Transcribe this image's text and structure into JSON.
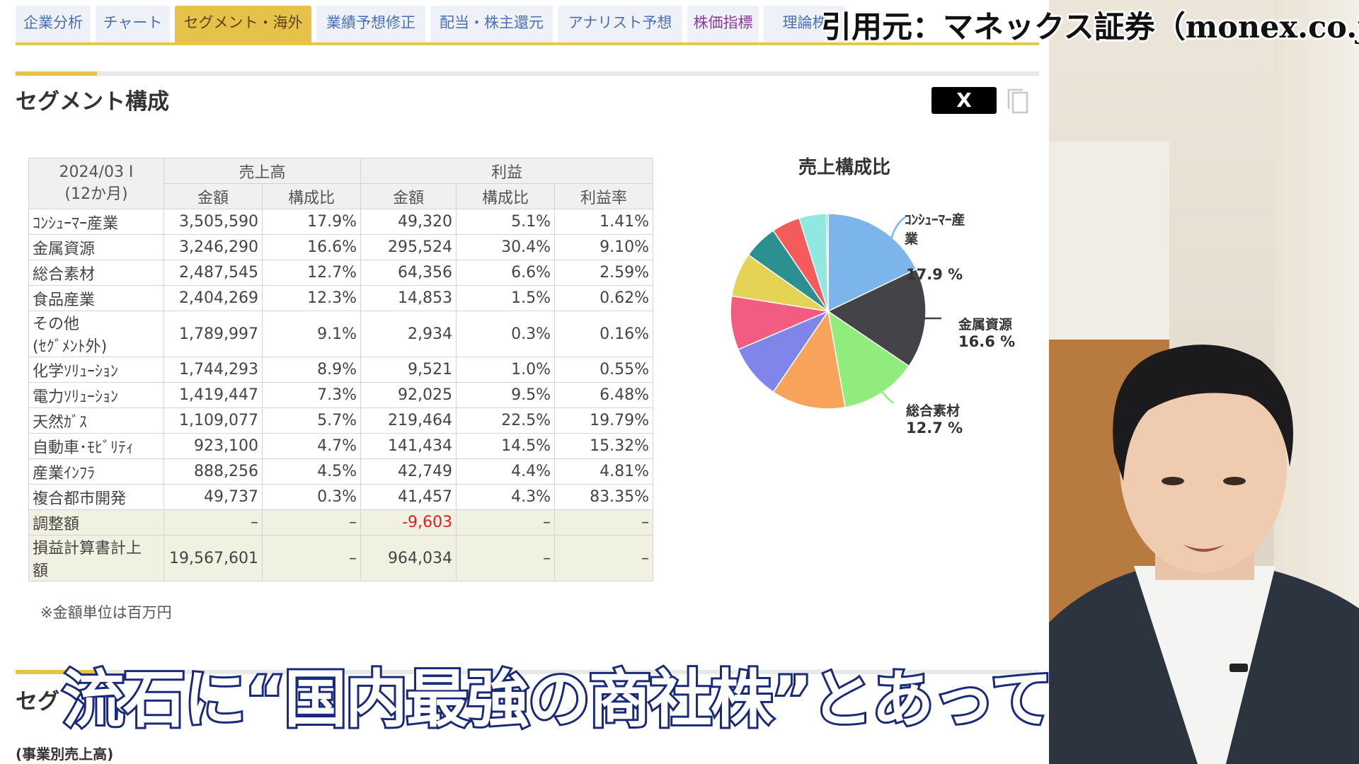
{
  "tabs": [
    {
      "label": "企業分析",
      "active": false,
      "style": "normal"
    },
    {
      "label": "チャート",
      "active": false,
      "style": "normal"
    },
    {
      "label": "セグメント・海外",
      "active": true,
      "style": "normal"
    },
    {
      "label": "業績予想修正",
      "active": false,
      "style": "normal"
    },
    {
      "label": "配当・株主還元",
      "active": false,
      "style": "normal"
    },
    {
      "label": "アナリスト予想",
      "active": false,
      "style": "normal"
    },
    {
      "label": "株価指標",
      "active": false,
      "style": "purple"
    },
    {
      "label": "理論株",
      "active": false,
      "style": "normal"
    }
  ],
  "source_caption": "引用元：マネックス証券（monex.co.jp）",
  "section": {
    "title": "セグメント構成",
    "share_label": "X",
    "next_title": "セグ",
    "next_subtitle": "(事業別売上高)"
  },
  "table": {
    "period_line1": "2024/03 I",
    "period_line2": "(12か月)",
    "group_sales": "売上高",
    "group_profit": "利益",
    "col_amount": "金額",
    "col_ratio": "構成比",
    "col_margin": "利益率",
    "rows": [
      {
        "name": "ｺﾝｼｭｰﾏｰ産業",
        "sales": "3,505,590",
        "sales_ratio": "17.9%",
        "profit": "49,320",
        "profit_ratio": "5.1%",
        "margin": "1.41%"
      },
      {
        "name": "金属資源",
        "sales": "3,246,290",
        "sales_ratio": "16.6%",
        "profit": "295,524",
        "profit_ratio": "30.4%",
        "margin": "9.10%"
      },
      {
        "name": "総合素材",
        "sales": "2,487,545",
        "sales_ratio": "12.7%",
        "profit": "64,356",
        "profit_ratio": "6.6%",
        "margin": "2.59%"
      },
      {
        "name": "食品産業",
        "sales": "2,404,269",
        "sales_ratio": "12.3%",
        "profit": "14,853",
        "profit_ratio": "1.5%",
        "margin": "0.62%"
      },
      {
        "name": "その他",
        "name2": "(ｾｸﾞﾒﾝﾄ外)",
        "sales": "1,789,997",
        "sales_ratio": "9.1%",
        "profit": "2,934",
        "profit_ratio": "0.3%",
        "margin": "0.16%"
      },
      {
        "name": "化学ｿﾘｭｰｼｮﾝ",
        "sales": "1,744,293",
        "sales_ratio": "8.9%",
        "profit": "9,521",
        "profit_ratio": "1.0%",
        "margin": "0.55%"
      },
      {
        "name": "電力ｿﾘｭｰｼｮﾝ",
        "sales": "1,419,447",
        "sales_ratio": "7.3%",
        "profit": "92,025",
        "profit_ratio": "9.5%",
        "margin": "6.48%"
      },
      {
        "name": "天然ｶﾞｽ",
        "sales": "1,109,077",
        "sales_ratio": "5.7%",
        "profit": "219,464",
        "profit_ratio": "22.5%",
        "margin": "19.79%"
      },
      {
        "name": "自動車･ﾓﾋﾞﾘﾃｨ",
        "sales": "923,100",
        "sales_ratio": "4.7%",
        "profit": "141,434",
        "profit_ratio": "14.5%",
        "margin": "15.32%"
      },
      {
        "name": "産業ｲﾝﾌﾗ",
        "sales": "888,256",
        "sales_ratio": "4.5%",
        "profit": "42,749",
        "profit_ratio": "4.4%",
        "margin": "4.81%"
      },
      {
        "name": "複合都市開発",
        "sales": "49,737",
        "sales_ratio": "0.3%",
        "profit": "41,457",
        "profit_ratio": "4.3%",
        "margin": "83.35%"
      },
      {
        "name": "調整額",
        "sales": "–",
        "sales_ratio": "–",
        "profit": "-9,603",
        "profit_ratio": "–",
        "margin": "–",
        "highlight": true,
        "negative": true
      },
      {
        "name": "損益計算書計上",
        "name2": "額",
        "sales": "19,567,601",
        "sales_ratio": "–",
        "profit": "964,034",
        "profit_ratio": "–",
        "margin": "–",
        "highlight": true
      }
    ],
    "note": "※金額単位は百万円"
  },
  "chart_data": {
    "type": "pie",
    "title": "売上構成比",
    "slices": [
      {
        "value": 17.9,
        "color": "#7cb5ec"
      },
      {
        "value": 16.6,
        "color": "#434348"
      },
      {
        "value": 12.7,
        "color": "#90ed7d"
      },
      {
        "value": 12.3,
        "color": "#f7a35c"
      },
      {
        "value": 9.1,
        "color": "#8085e9"
      },
      {
        "value": 8.9,
        "color": "#f15c80"
      },
      {
        "value": 7.3,
        "color": "#e4d354"
      },
      {
        "value": 5.7,
        "color": "#2b908f"
      },
      {
        "value": 4.7,
        "color": "#f45b5b"
      },
      {
        "value": 4.5,
        "color": "#91e8e1"
      },
      {
        "value": 0.3,
        "color": "#7cb5ec"
      }
    ],
    "labels": [
      {
        "name": "ｺﾝｼｭｰﾏｰ産",
        "name2": "業",
        "pct": "17.9 %"
      },
      {
        "name": "金属資源",
        "pct": "16.6 %"
      },
      {
        "name": "総合素材",
        "pct": "12.7 %"
      }
    ]
  },
  "caption": "流石に“国内最強の商社株”とあって"
}
